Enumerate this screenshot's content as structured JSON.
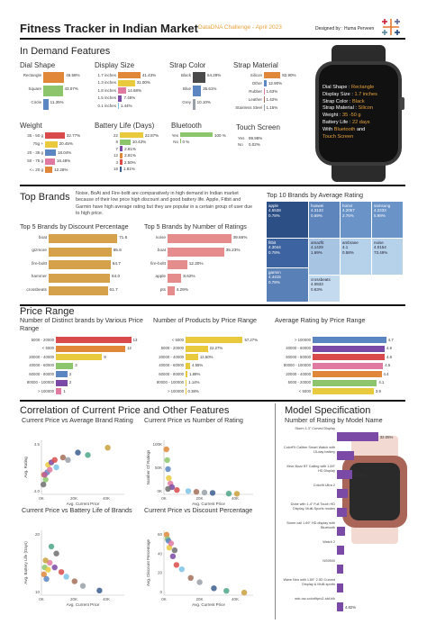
{
  "header": {
    "title": "Fitness Tracker in Indian Market",
    "challenge": "DataDNA Challenge - April 2023",
    "designer": "Designed by : Huma Perveen"
  },
  "sections": {
    "in_demand": "In Demand Features",
    "top_brands": "Top Brands",
    "price_range": "Price Range",
    "correlation": "Correlation of Current Price and Other Features",
    "model_spec": "Model Specification"
  },
  "top_brands_text": "Noise, BoAt and Fire-boltt are comparatively in high demand in Indian market because of their low price high discount and good battery life. Apple, Fitbit and Garmin have high average rating but they are popular in a certain group of user due to high price.",
  "watch": {
    "lines": [
      {
        "k": "Dial Shape : ",
        "v": "Rectangle"
      },
      {
        "k": "Display Size : ",
        "v": "1.7 inches"
      },
      {
        "k": "Strap Color : ",
        "v": "Black"
      },
      {
        "k": "Strap Material : ",
        "v": "Silicon"
      },
      {
        "k": "Weight : ",
        "v": "35 -50 g"
      },
      {
        "k": "Battery Life : ",
        "v": "22 days"
      },
      {
        "k": "With ",
        "v": "Bluetooth",
        "k2": " and"
      },
      {
        "k": "",
        "v": "Touch Screen"
      }
    ]
  },
  "colors": {
    "orange": "#e0873a",
    "green": "#8cc56c",
    "blue": "#5b86c2",
    "yellow": "#e9c93e",
    "pink": "#e07aa1",
    "purple": "#7b4aa6",
    "red": "#d94b4b",
    "lightblue": "#7ec3e6",
    "brown": "#a5705a",
    "grey": "#9aa0a8",
    "navy": "#3b5d8f",
    "accent": "#e8a33d"
  },
  "chart_data": [
    {
      "id": "dial",
      "type": "bar",
      "title": "Dial Shape",
      "categories": [
        "Rectangle",
        "Square",
        "Circle"
      ],
      "values": [
        46.58,
        43.07,
        11.35
      ],
      "labels": [
        "46.58%",
        "43.07%",
        "11.35%"
      ]
    },
    {
      "id": "display",
      "type": "bar",
      "title": "Display Size",
      "categories": [
        "1.7 inches",
        "1.3 inches",
        "1.8 inches",
        "1.5 inches",
        "0.1 inches"
      ],
      "values": [
        41.43,
        31.0,
        14.68,
        7.45,
        1.44
      ],
      "labels": [
        "41.43%",
        "31.00%",
        "14.68%",
        "7.45%",
        "1.44%"
      ]
    },
    {
      "id": "strapcolor",
      "type": "bar",
      "title": "Strap Color",
      "categories": [
        "Black",
        "Blue",
        "Grey"
      ],
      "values": [
        54.29,
        35.61,
        10.1
      ],
      "labels": [
        "54.29%",
        "35.61%",
        "10.10%"
      ]
    },
    {
      "id": "strapmat",
      "type": "bar",
      "title": "Strap Material",
      "categories": [
        "Silicon",
        "Other",
        "Rubber",
        "Leather",
        "Stainless Steel"
      ],
      "values": [
        82.9,
        12.9,
        1.63,
        1.42,
        1.15
      ],
      "labels": [
        "82.90%",
        "12.90%",
        "1.63%",
        "1.42%",
        "1.15%"
      ]
    },
    {
      "id": "weight",
      "type": "bar",
      "title": "Weight",
      "categories": [
        "35 - 50 g",
        "75g +",
        "20 - 35 g",
        "50 - 75 g",
        "<= 20 g"
      ],
      "values": [
        32.77,
        20.45,
        18.04,
        16.48,
        12.26
      ],
      "labels": [
        "32.77%",
        "20.45%",
        "18.04%",
        "16.48%",
        "12.26%"
      ]
    },
    {
      "id": "battery",
      "type": "bar",
      "title": "Battery Life (Days)",
      "categories": [
        "22",
        "8",
        "7",
        "12",
        "3",
        "18"
      ],
      "values": [
        22.87,
        10.43,
        2.81,
        2.81,
        2.5,
        1.81
      ],
      "labels": [
        "22.87%",
        "10.43%",
        "2.81%",
        "2.81%",
        "2.50%",
        "1.81%"
      ]
    },
    {
      "id": "bluetooth",
      "type": "bar",
      "title": "Bluetooth",
      "categories": [
        "Yes",
        "No"
      ],
      "values": [
        100,
        0
      ],
      "labels": [
        "100 %",
        "0 %"
      ]
    },
    {
      "id": "touch",
      "type": "table",
      "title": "Touch Screen",
      "categories": [
        "Yes",
        "No"
      ],
      "labels": [
        "99.98%",
        "0.02%"
      ]
    },
    {
      "id": "discount",
      "type": "bar",
      "title": "Top 5 Brands by Discount Percentage",
      "categories": [
        "boat",
        "gizmore",
        "fire-boltt",
        "hammer",
        "crossbeats"
      ],
      "values": [
        71.6,
        65.6,
        64.7,
        64.0,
        61.7
      ],
      "labels": [
        "71.6",
        "65.6",
        "64.7",
        "64.0",
        "61.7"
      ]
    },
    {
      "id": "ratings",
      "type": "bar",
      "title": "Top 5 Brands by Number of Ratings",
      "categories": [
        "noise",
        "boat",
        "fire-boltt",
        "apple",
        "pts"
      ],
      "values": [
        39.66,
        35.23,
        12.2,
        8.62,
        4.29
      ],
      "labels": [
        "39.66%",
        "35.23%",
        "12.20%",
        "8.62%",
        "4.29%"
      ]
    },
    {
      "id": "treemap",
      "type": "heatmap",
      "title": "Top 10 Brands by Average Rating",
      "categories": [
        "apple",
        "huawei",
        "honor",
        "samsung",
        "fitbit",
        "amazfit",
        "ambrane",
        "noise",
        "garmin",
        "crossbeats"
      ],
      "values": [
        4.5538,
        4.3133,
        4.2057,
        4.2233,
        4.3044,
        4.1429,
        4.1,
        4.0154,
        4.4415,
        4.0833
      ],
      "labels": [
        "0.78%",
        "0.69%",
        "2.75%",
        "5.99%",
        "0.78%",
        "1.69%",
        "0.58%",
        "73.49%",
        "0.78%",
        "0.63%"
      ]
    },
    {
      "id": "distinct",
      "type": "bar",
      "title": "Number of Distinct brands by Various Price Range",
      "categories": [
        "5000 - 20000",
        "< 5000",
        "20000 - 40000",
        "40000 - 60000",
        "60000 - 80000",
        "80000 - 100000",
        "> 100000"
      ],
      "values": [
        13,
        12,
        8,
        3,
        2,
        2,
        1
      ],
      "labels": [
        "13",
        "12",
        "8",
        "3",
        "2",
        "2",
        "1"
      ]
    },
    {
      "id": "products",
      "type": "bar",
      "title": "Number of Products by Price Range",
      "categories": [
        "< 5000",
        "5000 - 20000",
        "20000 - 40000",
        "40000 - 60000",
        "60000 - 80000",
        "80000 - 100000",
        "> 100000"
      ],
      "values": [
        57.27,
        22.27,
        12.5,
        4.55,
        1.89,
        1.14,
        0.38
      ],
      "labels": [
        "57.27%",
        "22.27%",
        "12.50%",
        "4.55%",
        "1.89%",
        "1.14%",
        "0.38%"
      ]
    },
    {
      "id": "avgrating",
      "type": "bar",
      "title": "Average Rating by Price Range",
      "categories": [
        "> 100000",
        "40000 - 60000",
        "60000 - 80000",
        "80000 - 100000",
        "20000 - 40000",
        "5000 - 20000",
        "< 5000"
      ],
      "values": [
        4.7,
        4.6,
        4.6,
        4.5,
        4.4,
        4.1,
        3.9
      ],
      "labels": [
        "4.7",
        "4.6",
        "4.6",
        "4.5",
        "4.4",
        "4.1",
        "3.9"
      ]
    },
    {
      "id": "sc1",
      "type": "scatter",
      "title": "Current Price vs Average Brand Rating",
      "xlabel": "Avg. Current Price",
      "ylabel": "Avg. Rating",
      "xticks": [
        "0K",
        "20K",
        "40K"
      ],
      "yticks": [
        "4.5",
        "4.0"
      ],
      "xlim": [
        0,
        50000
      ],
      "ylim": [
        3.6,
        4.7
      ],
      "points": [
        [
          1500,
          4.0
        ],
        [
          2500,
          3.9
        ],
        [
          3500,
          4.05
        ],
        [
          4000,
          4.2
        ],
        [
          5000,
          4.1
        ],
        [
          6000,
          4.25
        ],
        [
          8000,
          4.3
        ],
        [
          9000,
          4.15
        ],
        [
          13000,
          4.35
        ],
        [
          16000,
          4.3
        ],
        [
          22000,
          4.45
        ],
        [
          28000,
          4.4
        ],
        [
          40000,
          4.55
        ],
        [
          1200,
          3.8
        ],
        [
          2000,
          4.0
        ]
      ]
    },
    {
      "id": "sc2",
      "type": "scatter",
      "title": "Current Price vs Number of Rating",
      "xlabel": "Avg. Current Price",
      "ylabel": "Number Of Ratings",
      "xticks": [
        "0K",
        "20K",
        "40K"
      ],
      "yticks": [
        "100K",
        "50K",
        "0K"
      ],
      "xlim": [
        0,
        55000
      ],
      "ylim": [
        0,
        150000
      ],
      "points": [
        [
          1500,
          125000
        ],
        [
          2000,
          95000
        ],
        [
          2500,
          70000
        ],
        [
          3000,
          45000
        ],
        [
          4000,
          30000
        ],
        [
          5000,
          20000
        ],
        [
          8000,
          12000
        ],
        [
          15000,
          9000
        ],
        [
          20000,
          7000
        ],
        [
          25000,
          5000
        ],
        [
          30000,
          4000
        ],
        [
          40000,
          2000
        ],
        [
          45000,
          1500
        ],
        [
          2500,
          15000
        ]
      ]
    },
    {
      "id": "sc3",
      "type": "scatter",
      "title": "Current Price vs Battery Life of Brands",
      "xlabel": "Avg. Current Price",
      "ylabel": "Avg. Battery Life (Days)",
      "xticks": [
        "0K",
        "20K",
        "40K"
      ],
      "yticks": [
        "20",
        "10"
      ],
      "xlim": [
        0,
        50000
      ],
      "ylim": [
        0,
        28
      ],
      "points": [
        [
          1500,
          9
        ],
        [
          2000,
          12
        ],
        [
          3000,
          7
        ],
        [
          4000,
          11
        ],
        [
          5000,
          14
        ],
        [
          8000,
          12
        ],
        [
          12000,
          10
        ],
        [
          15000,
          8
        ],
        [
          20000,
          6
        ],
        [
          25000,
          4
        ],
        [
          35000,
          2
        ],
        [
          6000,
          21
        ],
        [
          2500,
          15
        ],
        [
          9000,
          18
        ]
      ]
    },
    {
      "id": "sc4",
      "type": "scatter",
      "title": "Current Price vs Discount Percentage",
      "xlabel": "Avg. Current Price",
      "ylabel": "Avg. Discount Percentage",
      "xticks": [
        "0K",
        "20K",
        "40K"
      ],
      "yticks": [
        "60",
        "40",
        "20",
        "0"
      ],
      "xlim": [
        0,
        50000
      ],
      "ylim": [
        0,
        75
      ],
      "points": [
        [
          1500,
          70
        ],
        [
          2000,
          65
        ],
        [
          2500,
          63
        ],
        [
          3000,
          55
        ],
        [
          4000,
          60
        ],
        [
          5000,
          45
        ],
        [
          7000,
          35
        ],
        [
          10000,
          30
        ],
        [
          15000,
          20
        ],
        [
          20000,
          15
        ],
        [
          28000,
          8
        ],
        [
          35000,
          5
        ],
        [
          45000,
          3
        ],
        [
          6000,
          52
        ]
      ]
    },
    {
      "id": "models",
      "type": "bar",
      "title": "Number of Rating by Model Name",
      "categories": [
        "Storm 1.3\" Curved Display",
        "ColorFit Caliber Smart Watch with 15-day battery",
        "Xtive Buzz BT Calling with 1.69\" HD Display",
        "Colorfit Ultra 2",
        "Dube with 1.4\" Full Touch HD Display, Multi-Sports modes",
        "Storm call 1.69\" HD display with Bluetooth",
        "Watch 2",
        "NS9500",
        "Wave Neo with 1.69\" 2.5D Curved Display & Multi-sports",
        "wrb-ow-colorfitpro2-std-blk"
      ],
      "values": [
        32.05,
        13.5,
        11.96,
        8.2,
        7.5,
        6.6,
        5.8,
        5.2,
        4.9,
        4.82
      ],
      "labels": [
        "32.05%",
        "",
        "11.96%",
        "",
        "",
        "",
        "",
        "",
        "",
        "4.82%"
      ]
    }
  ]
}
